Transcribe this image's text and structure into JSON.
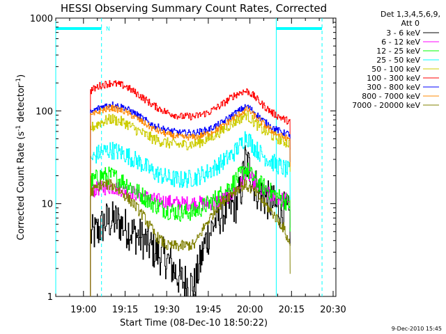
{
  "chart_data": {
    "type": "line",
    "title": "HESSI Observing Summary Count Rates, Corrected",
    "xlabel": "Start Time (08-Dec-10 18:50:22)",
    "ylabel": "Corrected Count Rate (s⁻¹ detector⁻¹)",
    "ylabel_main": "Corrected Count Rate (s",
    "ylabel_sup1": "-1",
    "ylabel_mid": " detector",
    "ylabel_sup2": "-1",
    "ylabel_end": ")",
    "yscale": "log",
    "ylim": [
      1,
      1000
    ],
    "xlim": [
      "18:50",
      "20:31"
    ],
    "x_unit": "minutes after 18:50 (UT, 08-Dec-10)",
    "xticks": [
      {
        "label": "19:00",
        "value": 10
      },
      {
        "label": "19:15",
        "value": 25
      },
      {
        "label": "19:30",
        "value": 40
      },
      {
        "label": "19:45",
        "value": 55
      },
      {
        "label": "20:00",
        "value": 70
      },
      {
        "label": "20:15",
        "value": 85
      },
      {
        "label": "20:30",
        "value": 100
      }
    ],
    "yticks": [
      {
        "label": "1",
        "value": 1
      },
      {
        "label": "10",
        "value": 10
      },
      {
        "label": "100",
        "value": 100
      },
      {
        "label": "1000",
        "value": 1000
      }
    ],
    "legend": {
      "position": "right",
      "header_line1": "Det 1,3,4,5,6,9,",
      "header_line2": "Att 0"
    },
    "annotation_N": "N",
    "day_night_bars": [
      {
        "from": 0,
        "to": 16.5
      },
      {
        "from": 79.5,
        "to": 96
      }
    ],
    "vlines_solid": [
      0,
      79.5
    ],
    "vlines_dashed": [
      16.5,
      96
    ],
    "active_interval": [
      12.5,
      84.5
    ],
    "series": [
      {
        "name": "3 - 6 keV",
        "color": "#000000",
        "x": [
          12.5,
          15,
          18,
          22,
          27,
          32,
          36,
          40,
          45,
          50,
          54,
          58,
          62,
          65,
          67,
          68,
          69.5,
          71,
          73,
          76,
          80,
          83,
          84.5
        ],
        "y": [
          4.5,
          5,
          6.5,
          6.5,
          5,
          4,
          3,
          2.5,
          1.5,
          1.3,
          4,
          7,
          9,
          10,
          15,
          30,
          25,
          18,
          13,
          11,
          9,
          8,
          7
        ]
      },
      {
        "name": "6 - 12 keV",
        "color": "#ff00ff",
        "x": [
          12.5,
          15,
          20,
          25,
          30,
          35,
          40,
          45,
          50,
          55,
          60,
          64,
          67,
          68.5,
          71,
          74,
          78,
          82,
          84.5
        ],
        "y": [
          13.5,
          14.5,
          15,
          14,
          12.5,
          11,
          10.5,
          10,
          10.2,
          10,
          11,
          13,
          17,
          22,
          18,
          14,
          12,
          11,
          11
        ]
      },
      {
        "name": "12 - 25 keV",
        "color": "#00ff00",
        "x": [
          12.5,
          16,
          20,
          25,
          30,
          35,
          40,
          45,
          50,
          55,
          60,
          64,
          67,
          68.5,
          71,
          74,
          78,
          82,
          84.5
        ],
        "y": [
          17,
          20,
          20,
          17,
          13,
          10,
          8.5,
          8,
          8.2,
          10,
          13,
          17,
          21,
          24,
          19,
          16,
          13,
          11,
          10
        ]
      },
      {
        "name": "25 - 50 keV",
        "color": "#00ffff",
        "x": [
          12.5,
          16,
          20,
          25,
          30,
          35,
          40,
          45,
          50,
          55,
          60,
          64,
          67,
          68.5,
          71,
          74,
          78,
          82,
          84.5
        ],
        "y": [
          30,
          36,
          38,
          34,
          28,
          22,
          19,
          18,
          19,
          22,
          28,
          35,
          45,
          55,
          42,
          34,
          28,
          24,
          22
        ]
      },
      {
        "name": "50 - 100 keV",
        "color": "#cccc00",
        "x": [
          12.5,
          16,
          20,
          25,
          30,
          35,
          40,
          45,
          50,
          55,
          60,
          64,
          67,
          68.5,
          71,
          74,
          78,
          82,
          84.5
        ],
        "y": [
          65,
          75,
          82,
          74,
          60,
          50,
          45,
          43,
          44,
          50,
          62,
          75,
          85,
          92,
          78,
          64,
          54,
          47,
          44
        ]
      },
      {
        "name": "100 - 300 keV",
        "color": "#ff0000",
        "x": [
          12.5,
          16,
          20,
          25,
          30,
          35,
          40,
          45,
          50,
          55,
          60,
          64,
          67,
          69,
          71,
          74,
          78,
          82,
          84.5
        ],
        "y": [
          165,
          188,
          200,
          185,
          148,
          115,
          96,
          87,
          87,
          96,
          118,
          145,
          160,
          163,
          148,
          120,
          95,
          82,
          76
        ]
      },
      {
        "name": "300 - 800 keV",
        "color": "#0000ff",
        "x": [
          12.5,
          16,
          20,
          25,
          30,
          35,
          40,
          45,
          50,
          55,
          60,
          64,
          67,
          69,
          71,
          74,
          78,
          82,
          84.5
        ],
        "y": [
          96,
          110,
          118,
          108,
          88,
          70,
          62,
          58,
          58,
          63,
          75,
          92,
          105,
          112,
          100,
          82,
          66,
          58,
          56
        ]
      },
      {
        "name": "800 - 7000 keV",
        "color": "#ff8800",
        "x": [
          12.5,
          16,
          20,
          25,
          30,
          35,
          40,
          45,
          50,
          55,
          60,
          64,
          67,
          69,
          71,
          74,
          78,
          82,
          84.5
        ],
        "y": [
          88,
          100,
          108,
          98,
          80,
          64,
          56,
          52,
          52,
          57,
          68,
          84,
          96,
          104,
          92,
          76,
          60,
          52,
          50
        ]
      },
      {
        "name": "7000 - 20000 keV",
        "color": "#808000",
        "x": [
          12.5,
          16,
          20,
          24,
          28,
          32,
          36,
          40,
          45,
          50,
          54,
          58,
          62,
          66,
          68,
          71,
          74,
          78,
          82,
          84.5
        ],
        "y": [
          13,
          16,
          16,
          13,
          10,
          7,
          4.5,
          3.5,
          3.5,
          3.6,
          6,
          9,
          12,
          15,
          16,
          14,
          11,
          8,
          5.5,
          3.5
        ]
      }
    ]
  },
  "footer": {
    "timestamp": "9-Dec-2010 15:45"
  }
}
